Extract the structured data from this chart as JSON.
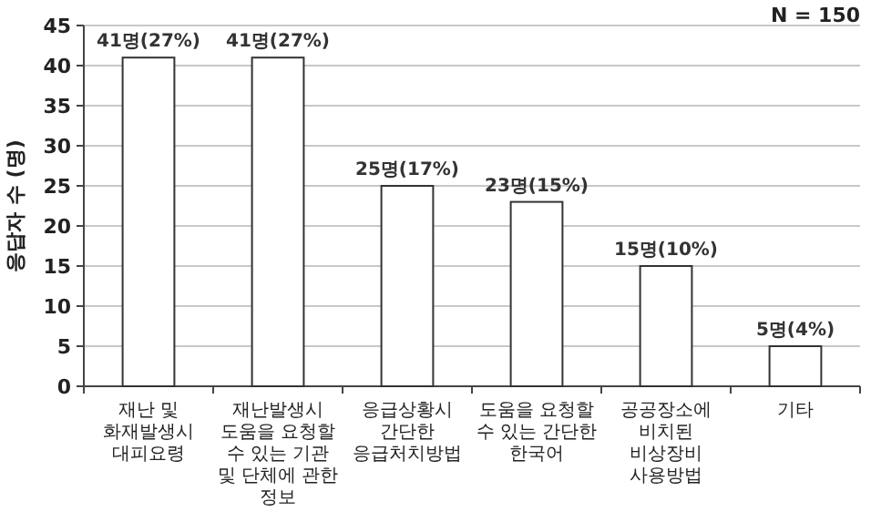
{
  "chart_data": {
    "type": "bar",
    "ylabel": "응답자 수 (명)",
    "annotations": [
      "N = 150"
    ],
    "categories": [
      "재난 및 화재발생시 대피요령",
      "재난발생시 도움을 요청할 수 있는 기관 및 단체에 관한 정보",
      "응급상황시 간단한 응급처치방법",
      "도움을 요청할 수 있는 간단한 한국어",
      "공공장소에 비치된 비상장비 사용방법",
      "기타"
    ],
    "values": [
      41,
      41,
      25,
      23,
      15,
      5
    ],
    "value_labels": [
      "41명(27%)",
      "41명(27%)",
      "25명(17%)",
      "23명(15%)",
      "15명(10%)",
      "5명(4%)"
    ],
    "color": "#ffffff",
    "ylim": [
      0,
      45
    ],
    "yticks": [
      0,
      5,
      10,
      15,
      20,
      25,
      30,
      35,
      40,
      45
    ],
    "grid": "y"
  }
}
